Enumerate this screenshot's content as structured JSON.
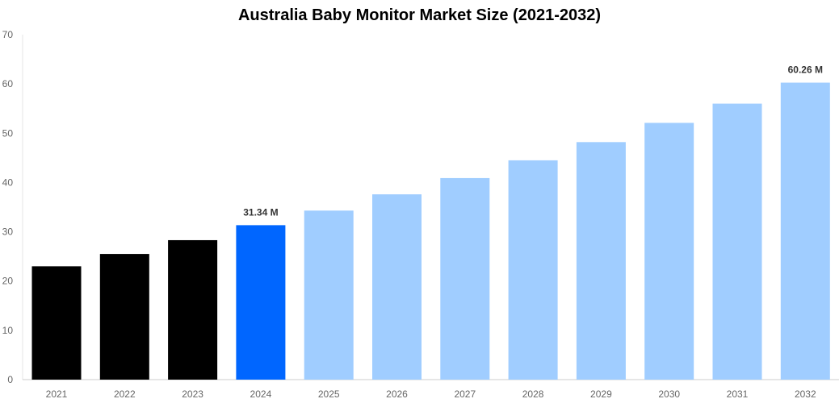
{
  "chart_data": {
    "type": "bar",
    "title": "Australia Baby Monitor Market Size (2021-2032)",
    "xlabel": "",
    "ylabel": "",
    "ylim": [
      0,
      70
    ],
    "yticks": [
      "0",
      "10",
      "20",
      "30",
      "40",
      "50",
      "60",
      "70"
    ],
    "grid": false,
    "categories": [
      "2021",
      "2022",
      "2023",
      "2024",
      "2025",
      "2026",
      "2027",
      "2028",
      "2029",
      "2030",
      "2031",
      "2032"
    ],
    "values": [
      23.0,
      25.5,
      28.3,
      31.34,
      34.3,
      37.6,
      40.9,
      44.5,
      48.2,
      52.1,
      56.0,
      60.26
    ],
    "bar_colors": [
      "#000000",
      "#000000",
      "#000000",
      "#0066ff",
      "#a0cdff",
      "#a0cdff",
      "#a0cdff",
      "#a0cdff",
      "#a0cdff",
      "#a0cdff",
      "#a0cdff",
      "#a0cdff"
    ],
    "annotations": [
      {
        "category": "2024",
        "text": "31.34 M"
      },
      {
        "category": "2032",
        "text": "60.26 M"
      }
    ]
  }
}
